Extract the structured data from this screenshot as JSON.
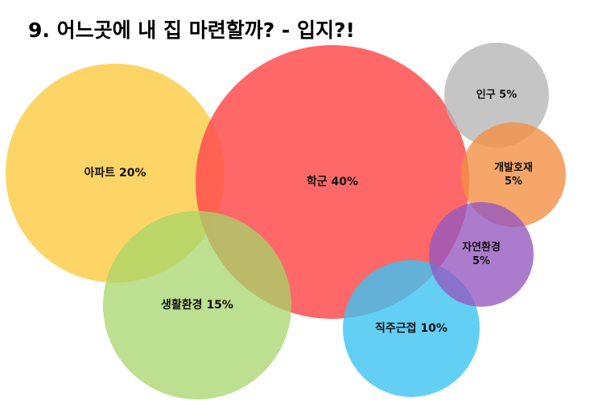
{
  "title": "9. 어느곳에 내 집 마련할까? - 입지?!",
  "chart_data": {
    "type": "bubble",
    "title": "9. 어느곳에 내 집 마련할까? - 입지?!",
    "unit": "%",
    "items": [
      {
        "id": "apartment",
        "name": "아파트",
        "value": 20,
        "label_lines": [
          "아파트 20%"
        ],
        "color": "#FDC93B"
      },
      {
        "id": "school",
        "name": "학군",
        "value": 40,
        "label_lines": [
          "학군 40%"
        ],
        "color": "#FF4D4D"
      },
      {
        "id": "living",
        "name": "생활환경",
        "value": 15,
        "label_lines": [
          "생활환경 15%"
        ],
        "color": "#A6D66A"
      },
      {
        "id": "commute",
        "name": "직주근접",
        "value": 10,
        "label_lines": [
          "직주근접 10%"
        ],
        "color": "#3CC3F2"
      },
      {
        "id": "population",
        "name": "인구",
        "value": 5,
        "label_lines": [
          "인구 5%"
        ],
        "color": "#B7B7B7"
      },
      {
        "id": "development",
        "name": "개발호재",
        "value": 5,
        "label_lines": [
          "개발호재",
          "5%"
        ],
        "color": "#F29042"
      },
      {
        "id": "nature",
        "name": "자연환경",
        "value": 5,
        "label_lines": [
          "자연환경",
          "5%"
        ],
        "color": "#9457C0"
      }
    ]
  }
}
